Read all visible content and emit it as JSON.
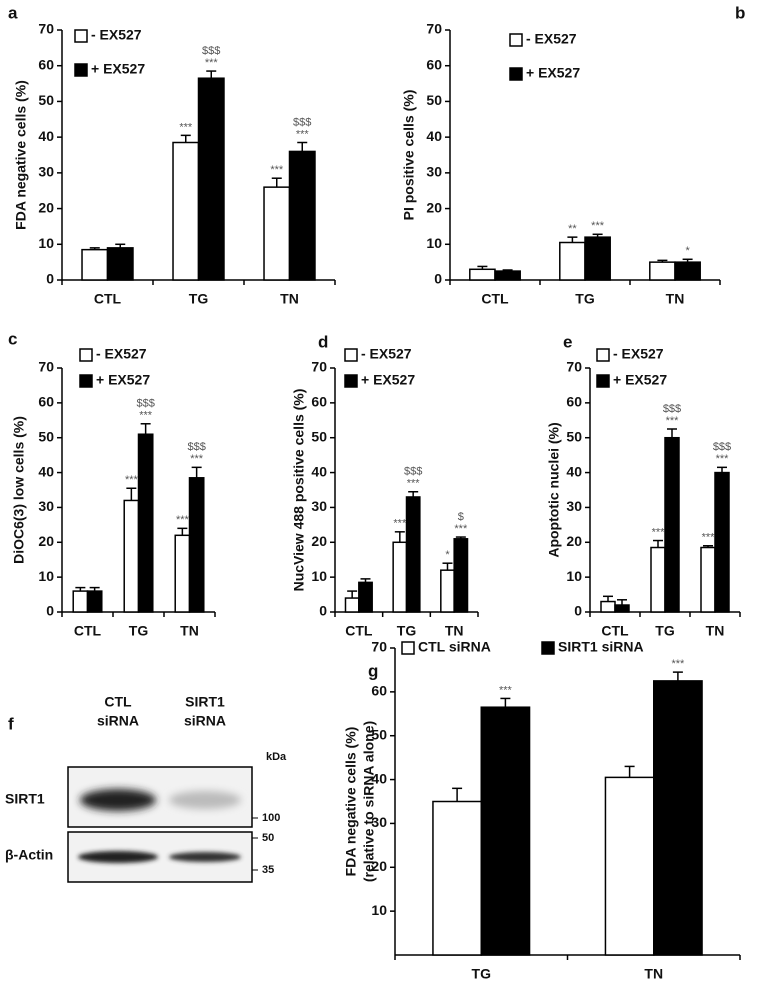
{
  "chart_data": [
    {
      "type": "bar",
      "panel": "a",
      "ylabel": "FDA negative cells (%)",
      "categories": [
        "CTL",
        "TG",
        "TN"
      ],
      "ylim": [
        0,
        70
      ],
      "yticks": [
        0,
        10,
        20,
        30,
        40,
        50,
        60,
        70
      ],
      "series": [
        {
          "name": "- EX527",
          "color": "#ffffff",
          "values": [
            8.5,
            38.5,
            26
          ],
          "errors": [
            0.5,
            2,
            2.5
          ],
          "annotations": [
            [],
            [
              "***"
            ],
            [
              "***"
            ]
          ]
        },
        {
          "name": "+ EX527",
          "color": "#000000",
          "values": [
            9,
            56.5,
            36
          ],
          "errors": [
            1,
            2,
            2.5
          ],
          "annotations": [
            [],
            [
              "***",
              "$$$"
            ],
            [
              "***",
              "$$$"
            ]
          ]
        }
      ]
    },
    {
      "type": "bar",
      "panel": "b",
      "ylabel": "PI positive cells (%)",
      "categories": [
        "CTL",
        "TG",
        "TN"
      ],
      "ylim": [
        0,
        70
      ],
      "yticks": [
        0,
        10,
        20,
        30,
        40,
        50,
        60,
        70
      ],
      "series": [
        {
          "name": "- EX527",
          "color": "#ffffff",
          "values": [
            3,
            10.5,
            5
          ],
          "errors": [
            0.8,
            1.5,
            0.5
          ],
          "annotations": [
            [],
            [
              "**"
            ],
            []
          ]
        },
        {
          "name": "+ EX527",
          "color": "#000000",
          "values": [
            2.5,
            12,
            5
          ],
          "errors": [
            0.3,
            0.8,
            0.8
          ],
          "annotations": [
            [],
            [
              "***"
            ],
            [
              "*"
            ]
          ]
        }
      ]
    },
    {
      "type": "bar",
      "panel": "c",
      "ylabel": "DiOC6(3) low cells (%)",
      "categories": [
        "CTL",
        "TG",
        "TN"
      ],
      "ylim": [
        0,
        70
      ],
      "yticks": [
        0,
        10,
        20,
        30,
        40,
        50,
        60,
        70
      ],
      "series": [
        {
          "name": "- EX527",
          "color": "#ffffff",
          "values": [
            6,
            32,
            22
          ],
          "errors": [
            1,
            3.5,
            2
          ],
          "annotations": [
            [],
            [
              "***"
            ],
            [
              "***"
            ]
          ]
        },
        {
          "name": "+ EX527",
          "color": "#000000",
          "values": [
            6,
            51,
            38.5
          ],
          "errors": [
            1,
            3,
            3
          ],
          "annotations": [
            [],
            [
              "***",
              "$$$"
            ],
            [
              "***",
              "$$$"
            ]
          ]
        }
      ]
    },
    {
      "type": "bar",
      "panel": "d",
      "ylabel": "NucView 488 positive cells (%)",
      "categories": [
        "CTL",
        "TG",
        "TN"
      ],
      "ylim": [
        0,
        70
      ],
      "yticks": [
        0,
        10,
        20,
        30,
        40,
        50,
        60,
        70
      ],
      "series": [
        {
          "name": "- EX527",
          "color": "#ffffff",
          "values": [
            4,
            20,
            12
          ],
          "errors": [
            2,
            3,
            2
          ],
          "annotations": [
            [],
            [
              "***"
            ],
            [
              "*"
            ]
          ]
        },
        {
          "name": "+ EX527",
          "color": "#000000",
          "values": [
            8.5,
            33,
            21
          ],
          "errors": [
            1,
            1.5,
            0.5
          ],
          "annotations": [
            [],
            [
              "***",
              "$$$"
            ],
            [
              "***",
              "$"
            ]
          ]
        }
      ]
    },
    {
      "type": "bar",
      "panel": "e",
      "ylabel": "Apoptotic nuclei (%)",
      "categories": [
        "CTL",
        "TG",
        "TN"
      ],
      "ylim": [
        0,
        70
      ],
      "yticks": [
        0,
        10,
        20,
        30,
        40,
        50,
        60,
        70
      ],
      "series": [
        {
          "name": "- EX527",
          "color": "#ffffff",
          "values": [
            3,
            18.5,
            18.5
          ],
          "errors": [
            1.5,
            2,
            0.5
          ],
          "annotations": [
            [],
            [
              "***"
            ],
            [
              "***"
            ]
          ]
        },
        {
          "name": "+ EX527",
          "color": "#000000",
          "values": [
            2,
            50,
            40
          ],
          "errors": [
            1.5,
            2.5,
            1.5
          ],
          "annotations": [
            [],
            [
              "***",
              "$$$"
            ],
            [
              "***",
              "$$$"
            ]
          ]
        }
      ]
    },
    {
      "type": "bar",
      "panel": "g",
      "ylabel": [
        "FDA negative cells (%)",
        "(relative to siRNA alone)"
      ],
      "categories": [
        "TG",
        "TN"
      ],
      "ylim": [
        0,
        70
      ],
      "yticks": [
        10,
        20,
        30,
        40,
        50,
        60,
        70
      ],
      "series": [
        {
          "name": "CTL siRNA",
          "color": "#ffffff",
          "values": [
            35,
            40.5
          ],
          "errors": [
            3,
            2.5
          ],
          "annotations": [
            [],
            []
          ]
        },
        {
          "name": "SIRT1 siRNA",
          "color": "#000000",
          "values": [
            56.5,
            62.5
          ],
          "errors": [
            2,
            2
          ],
          "annotations": [
            [
              "***"
            ],
            [
              "***"
            ]
          ]
        }
      ]
    }
  ],
  "blot": {
    "panel": "f",
    "lanes": [
      [
        "CTL",
        "siRNA"
      ],
      [
        "SIRT1",
        "siRNA"
      ]
    ],
    "unit": "kDa",
    "rows": [
      "SIRT1",
      "β-Actin"
    ],
    "markers": [
      100,
      50,
      35
    ]
  }
}
